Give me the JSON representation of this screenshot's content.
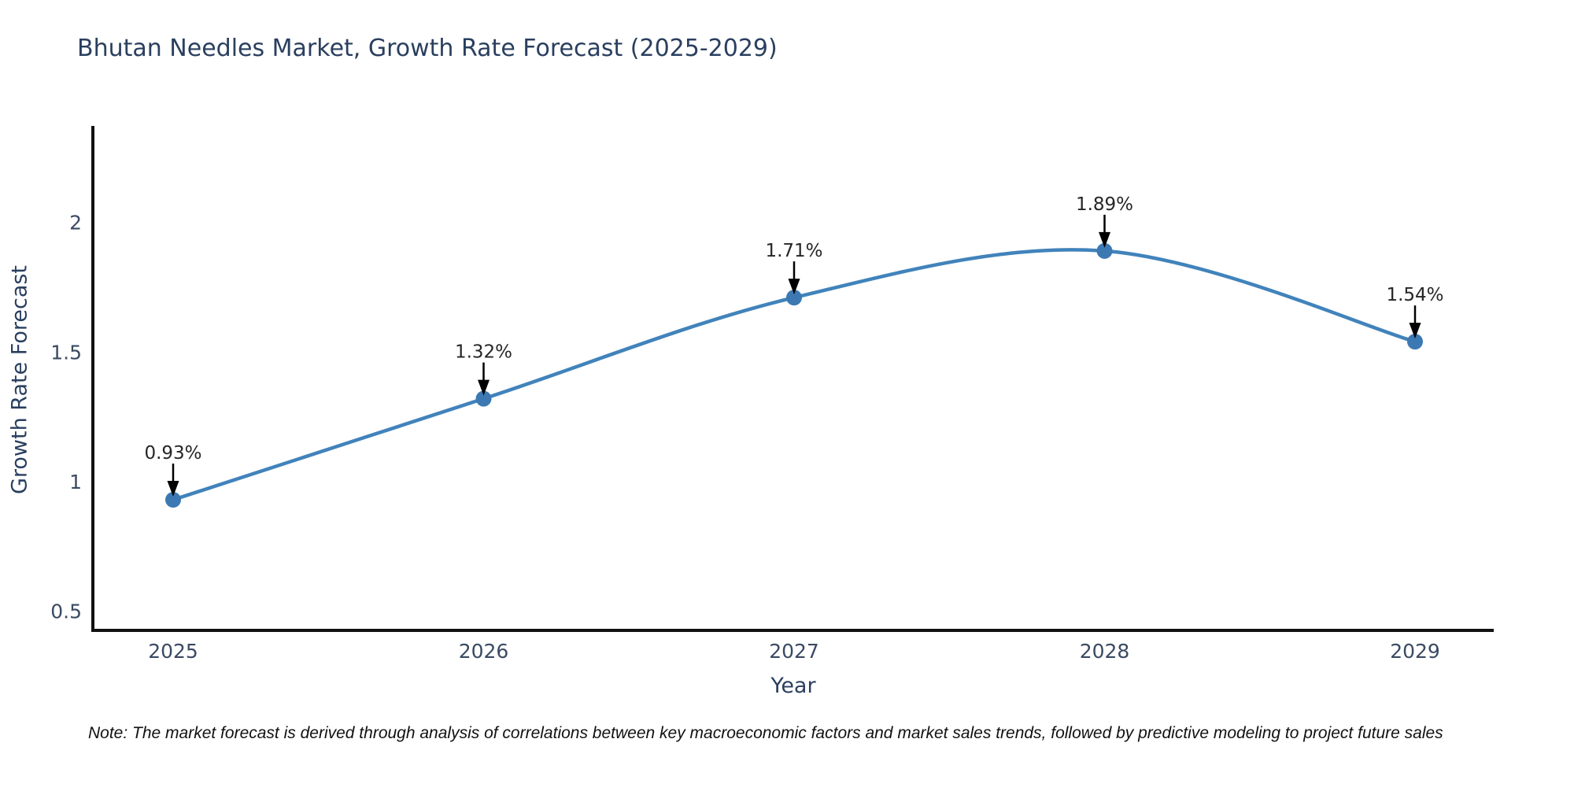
{
  "title": "Bhutan Needles Market, Growth Rate Forecast (2025-2029)",
  "note": "Note: The market forecast is derived through analysis of correlations between key macroeconomic factors and market sales trends, followed by predictive modeling to project future sales",
  "chart_data": {
    "type": "line",
    "title": "Bhutan Needles Market, Growth Rate Forecast (2025-2029)",
    "xlabel": "Year",
    "ylabel": "Growth Rate Forecast",
    "x": [
      2025,
      2026,
      2027,
      2028,
      2029
    ],
    "xtick_labels": [
      "2025",
      "2026",
      "2027",
      "2028",
      "2029"
    ],
    "yticks": [
      0.5,
      1,
      1.5,
      2
    ],
    "ytick_labels": [
      "0.5",
      "1",
      "1.5",
      "2"
    ],
    "ylim": [
      0.43,
      2.37
    ],
    "grid": false,
    "legend": "none",
    "line_shape": "spline",
    "series": [
      {
        "name": "Growth Rate Forecast",
        "values": [
          0.93,
          1.32,
          1.71,
          1.89,
          1.54
        ],
        "data_labels": [
          "0.93%",
          "1.32%",
          "1.71%",
          "1.89%",
          "1.54%"
        ]
      }
    ],
    "colors": {
      "line": "#4183bb",
      "marker": "#3c79b3",
      "axis": "#111111",
      "tick_text": "#3a4a63",
      "annotation_text": "#262626",
      "annotation_arrow": "#000000",
      "title_text": "#2a3f5f"
    }
  }
}
